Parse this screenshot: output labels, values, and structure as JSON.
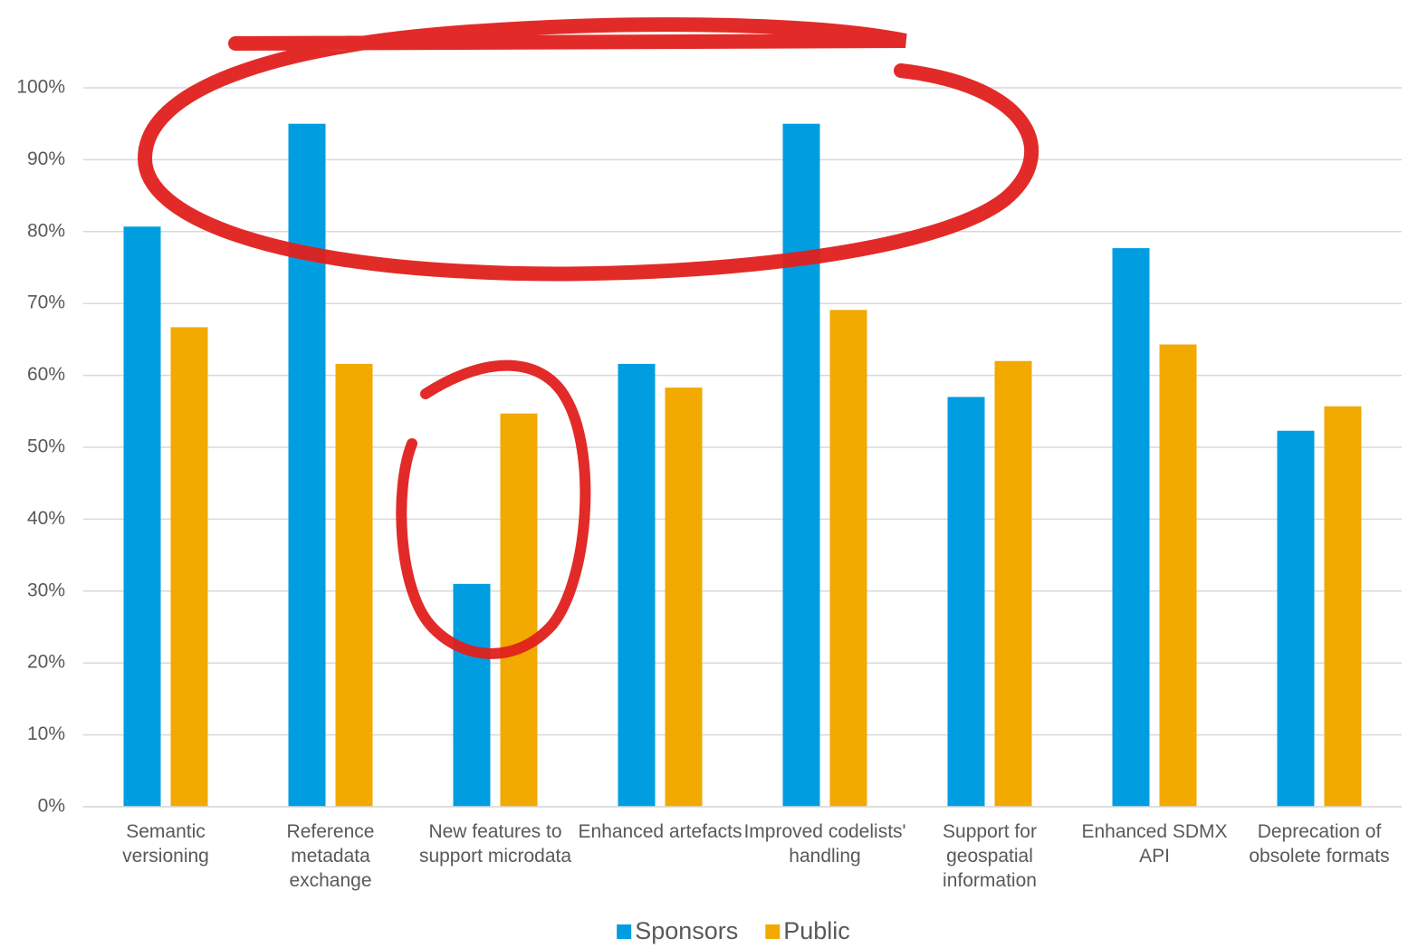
{
  "chart_data": {
    "type": "bar",
    "categories": [
      "Semantic versioning",
      "Reference metadata exchange",
      "New features to support microdata",
      "Enhanced artefacts",
      "Improved codelists' handling",
      "Support for geospatial information",
      "Enhanced SDMX API",
      "Deprecation of obsolete formats"
    ],
    "series": [
      {
        "name": "Sponsors",
        "color": "#009ee0",
        "values": [
          80.7,
          95,
          31,
          61.6,
          95,
          57,
          77.7,
          52.3
        ]
      },
      {
        "name": "Public",
        "color": "#f2a900",
        "values": [
          66.7,
          61.6,
          54.7,
          58.3,
          69.1,
          62,
          64.3,
          55.7
        ]
      }
    ],
    "ylim": [
      0,
      100
    ],
    "yticks": [
      {
        "value": 0,
        "label": "0%"
      },
      {
        "value": 10,
        "label": "10%"
      },
      {
        "value": 20,
        "label": "20%"
      },
      {
        "value": 30,
        "label": "30%"
      },
      {
        "value": 40,
        "label": "40%"
      },
      {
        "value": 50,
        "label": "50%"
      },
      {
        "value": 60,
        "label": "60%"
      },
      {
        "value": 70,
        "label": "70%"
      },
      {
        "value": 80,
        "label": "80%"
      },
      {
        "value": 90,
        "label": "90%"
      },
      {
        "value": 100,
        "label": "100%"
      }
    ],
    "grid": true,
    "legend": "bottom"
  }
}
